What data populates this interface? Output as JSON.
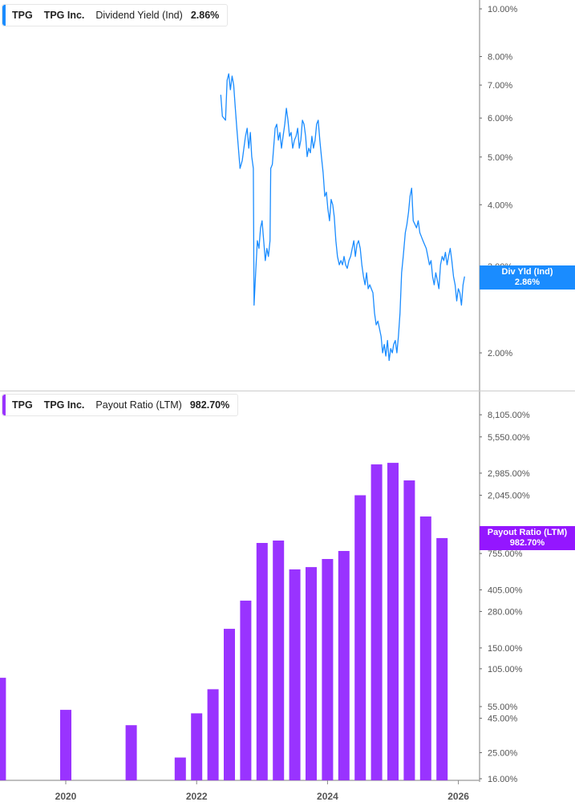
{
  "legends": {
    "top": {
      "ticker": "TPG",
      "company": "TPG Inc.",
      "metric": "Dividend Yield (Ind)",
      "value": "2.86%"
    },
    "bottom": {
      "ticker": "TPG",
      "company": "TPG Inc.",
      "metric": "Payout Ratio (LTM)",
      "value": "982.70%"
    }
  },
  "flags": {
    "top": {
      "label": "Div Yld (Ind)",
      "value": "2.86%"
    },
    "bottom": {
      "label": "Payout Ratio (LTM)",
      "value": "982.70%"
    }
  },
  "colors": {
    "yield": "#1a8cff",
    "payout": "#9933ff",
    "axis": "#999999"
  },
  "chart_data": [
    {
      "type": "line",
      "title": "",
      "y_scale": "log",
      "ylim": [
        1.8,
        10.5
      ],
      "y_ticks": [
        10,
        8,
        7,
        6,
        5,
        4,
        3,
        2
      ],
      "y_tick_labels": [
        "10.00%",
        "8.00%",
        "7.00%",
        "6.00%",
        "5.00%",
        "4.00%",
        "3.00%",
        "2.00%"
      ],
      "series": [
        {
          "name": "Dividend Yield (Ind)",
          "points": [
            [
              "2022-05-14",
              6.69
            ],
            [
              "2022-05-23",
              6.05
            ],
            [
              "2022-06-10",
              5.94
            ],
            [
              "2022-06-19",
              7.16
            ],
            [
              "2022-06-28",
              7.38
            ],
            [
              "2022-07-07",
              6.85
            ],
            [
              "2022-07-16",
              7.3
            ],
            [
              "2022-07-25",
              7.0
            ],
            [
              "2022-08-03",
              6.36
            ],
            [
              "2022-08-12",
              5.72
            ],
            [
              "2022-08-21",
              5.21
            ],
            [
              "2022-08-30",
              4.74
            ],
            [
              "2022-09-12",
              4.92
            ],
            [
              "2022-09-21",
              5.21
            ],
            [
              "2022-09-30",
              5.51
            ],
            [
              "2022-10-09",
              5.72
            ],
            [
              "2022-10-18",
              5.21
            ],
            [
              "2022-10-27",
              5.61
            ],
            [
              "2022-11-04",
              5.01
            ],
            [
              "2022-11-13",
              4.74
            ],
            [
              "2022-11-17",
              2.5
            ],
            [
              "2022-11-26",
              2.91
            ],
            [
              "2022-12-05",
              3.38
            ],
            [
              "2022-12-14",
              3.26
            ],
            [
              "2022-12-23",
              3.59
            ],
            [
              "2023-01-01",
              3.71
            ],
            [
              "2023-01-10",
              3.38
            ],
            [
              "2023-01-19",
              3.08
            ],
            [
              "2023-01-28",
              3.26
            ],
            [
              "2023-02-06",
              3.14
            ],
            [
              "2023-02-15",
              3.38
            ],
            [
              "2023-02-19",
              4.74
            ],
            [
              "2023-02-28",
              4.83
            ],
            [
              "2023-03-13",
              5.72
            ],
            [
              "2023-03-22",
              5.83
            ],
            [
              "2023-03-31",
              5.41
            ],
            [
              "2023-04-09",
              5.61
            ],
            [
              "2023-04-18",
              5.21
            ],
            [
              "2023-04-27",
              5.51
            ],
            [
              "2023-05-06",
              5.83
            ],
            [
              "2023-05-15",
              6.28
            ],
            [
              "2023-05-24",
              5.94
            ],
            [
              "2023-06-02",
              5.51
            ],
            [
              "2023-06-11",
              5.61
            ],
            [
              "2023-06-20",
              5.21
            ],
            [
              "2023-06-29",
              5.41
            ],
            [
              "2023-07-08",
              5.51
            ],
            [
              "2023-07-17",
              5.72
            ],
            [
              "2023-07-26",
              5.21
            ],
            [
              "2023-08-04",
              5.41
            ],
            [
              "2023-08-13",
              5.94
            ],
            [
              "2023-08-22",
              5.83
            ],
            [
              "2023-08-31",
              5.51
            ],
            [
              "2023-09-09",
              5.01
            ],
            [
              "2023-09-18",
              5.21
            ],
            [
              "2023-09-27",
              5.1
            ],
            [
              "2023-10-05",
              5.51
            ],
            [
              "2023-10-14",
              5.21
            ],
            [
              "2023-10-23",
              5.41
            ],
            [
              "2023-11-01",
              5.83
            ],
            [
              "2023-11-10",
              5.94
            ],
            [
              "2023-11-19",
              5.41
            ],
            [
              "2023-11-28",
              5.01
            ],
            [
              "2023-12-07",
              4.65
            ],
            [
              "2023-12-16",
              4.16
            ],
            [
              "2023-12-25",
              4.24
            ],
            [
              "2024-01-03",
              3.93
            ],
            [
              "2024-01-12",
              3.71
            ],
            [
              "2024-01-21",
              4.1
            ],
            [
              "2024-01-30",
              4.0
            ],
            [
              "2024-02-08",
              3.78
            ],
            [
              "2024-02-17",
              3.38
            ],
            [
              "2024-02-26",
              3.14
            ],
            [
              "2024-03-06",
              3.02
            ],
            [
              "2024-03-15",
              3.08
            ],
            [
              "2024-03-24",
              3.02
            ],
            [
              "2024-04-02",
              3.14
            ],
            [
              "2024-04-11",
              3.02
            ],
            [
              "2024-04-20",
              2.97
            ],
            [
              "2024-04-29",
              3.08
            ],
            [
              "2024-05-08",
              3.14
            ],
            [
              "2024-05-17",
              3.26
            ],
            [
              "2024-05-26",
              3.38
            ],
            [
              "2024-06-04",
              3.14
            ],
            [
              "2024-06-13",
              3.32
            ],
            [
              "2024-06-22",
              3.38
            ],
            [
              "2024-07-01",
              3.26
            ],
            [
              "2024-07-10",
              3.02
            ],
            [
              "2024-07-19",
              2.86
            ],
            [
              "2024-07-28",
              2.75
            ],
            [
              "2024-08-06",
              2.91
            ],
            [
              "2024-08-15",
              2.7
            ],
            [
              "2024-08-24",
              2.75
            ],
            [
              "2024-09-02",
              2.7
            ],
            [
              "2024-09-11",
              2.65
            ],
            [
              "2024-09-20",
              2.41
            ],
            [
              "2024-09-29",
              2.28
            ],
            [
              "2024-10-08",
              2.32
            ],
            [
              "2024-10-17",
              2.24
            ],
            [
              "2024-10-26",
              2.16
            ],
            [
              "2024-11-04",
              2.0
            ],
            [
              "2024-11-13",
              2.08
            ],
            [
              "2024-11-22",
              1.97
            ],
            [
              "2024-12-01",
              2.12
            ],
            [
              "2024-12-10",
              1.93
            ],
            [
              "2024-12-19",
              2.04
            ],
            [
              "2024-12-28",
              2.0
            ],
            [
              "2025-01-05",
              2.08
            ],
            [
              "2025-01-14",
              2.12
            ],
            [
              "2025-01-23",
              2.0
            ],
            [
              "2025-02-01",
              2.16
            ],
            [
              "2025-02-10",
              2.41
            ],
            [
              "2025-02-19",
              2.91
            ],
            [
              "2025-02-28",
              3.14
            ],
            [
              "2025-03-09",
              3.51
            ],
            [
              "2025-03-18",
              3.65
            ],
            [
              "2025-03-27",
              3.86
            ],
            [
              "2025-04-05",
              4.16
            ],
            [
              "2025-04-14",
              4.32
            ],
            [
              "2025-04-23",
              3.71
            ],
            [
              "2025-05-02",
              3.65
            ],
            [
              "2025-05-11",
              3.59
            ],
            [
              "2025-05-20",
              3.71
            ],
            [
              "2025-05-29",
              3.51
            ],
            [
              "2025-06-07",
              3.45
            ],
            [
              "2025-06-16",
              3.38
            ],
            [
              "2025-06-25",
              3.32
            ],
            [
              "2025-07-04",
              3.26
            ],
            [
              "2025-07-13",
              3.14
            ],
            [
              "2025-07-22",
              3.02
            ],
            [
              "2025-07-31",
              3.08
            ],
            [
              "2025-08-09",
              2.86
            ],
            [
              "2025-08-18",
              2.75
            ],
            [
              "2025-08-27",
              2.91
            ],
            [
              "2025-09-05",
              2.81
            ],
            [
              "2025-09-14",
              2.7
            ],
            [
              "2025-09-23",
              3.02
            ],
            [
              "2025-10-02",
              3.14
            ],
            [
              "2025-10-11",
              3.08
            ],
            [
              "2025-10-20",
              3.2
            ],
            [
              "2025-10-29",
              3.02
            ],
            [
              "2025-11-07",
              3.14
            ],
            [
              "2025-11-16",
              3.26
            ],
            [
              "2025-11-25",
              3.08
            ],
            [
              "2025-12-04",
              2.86
            ],
            [
              "2025-12-13",
              2.75
            ],
            [
              "2025-12-22",
              2.55
            ],
            [
              "2025-12-31",
              2.7
            ],
            [
              "2026-01-09",
              2.65
            ],
            [
              "2026-01-18",
              2.5
            ],
            [
              "2026-01-27",
              2.75
            ],
            [
              "2026-02-05",
              2.86
            ]
          ]
        }
      ]
    },
    {
      "type": "bar",
      "title": "",
      "y_scale": "log",
      "ylim": [
        16,
        9000
      ],
      "y_ticks": [
        8105,
        5550,
        2985,
        2045,
        755,
        405,
        280,
        150,
        105,
        55,
        45,
        25,
        16
      ],
      "y_tick_labels": [
        "8,105.00%",
        "5,550.00%",
        "2,985.00%",
        "2,045.00%",
        "755.00%",
        "405.00%",
        "280.00%",
        "150.00%",
        "105.00%",
        "55.00%",
        "45.00%",
        "25.00%",
        "16.00%"
      ],
      "x_ticks": [
        "2020",
        "2022",
        "2024",
        "2026"
      ],
      "series": [
        {
          "name": "Payout Ratio (LTM)",
          "points": [
            [
              "2019-01-01",
              90
            ],
            [
              "2020-01-01",
              52
            ],
            [
              "2021-01-01",
              40
            ],
            [
              "2021-10-01",
              23
            ],
            [
              "2022-01-01",
              49
            ],
            [
              "2022-04-01",
              74
            ],
            [
              "2022-07-01",
              208
            ],
            [
              "2022-10-01",
              337
            ],
            [
              "2023-01-01",
              904
            ],
            [
              "2023-04-01",
              942
            ],
            [
              "2023-07-01",
              575
            ],
            [
              "2023-10-01",
              598
            ],
            [
              "2024-01-01",
              687
            ],
            [
              "2024-04-01",
              788
            ],
            [
              "2024-07-01",
              2045
            ],
            [
              "2024-10-01",
              3467
            ],
            [
              "2025-01-01",
              3560
            ],
            [
              "2025-04-01",
              2636
            ],
            [
              "2025-07-01",
              1422
            ],
            [
              "2025-10-01",
              982.7
            ]
          ]
        }
      ]
    }
  ]
}
